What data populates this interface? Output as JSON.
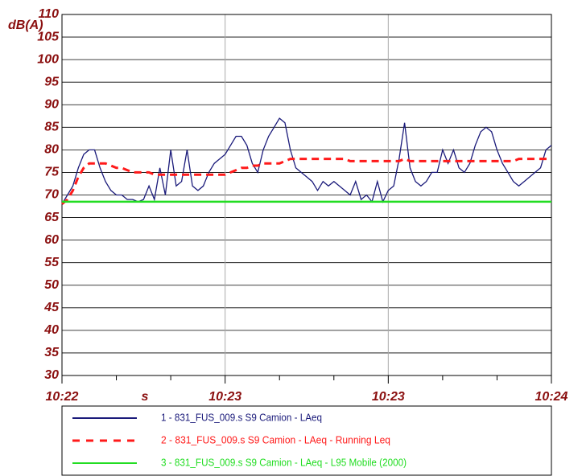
{
  "chart_data": {
    "type": "line",
    "y_label": "dB(A)",
    "x_label": "s",
    "xlim": [
      0,
      90
    ],
    "xticks": [
      {
        "value": 0,
        "label": "10:22"
      },
      {
        "value": 30,
        "label": "10:23"
      },
      {
        "value": 60,
        "label": "10:23"
      },
      {
        "value": 90,
        "label": "10:24"
      }
    ],
    "ylim": [
      30,
      110
    ],
    "yticks": [
      30,
      35,
      40,
      45,
      50,
      55,
      60,
      65,
      70,
      75,
      80,
      85,
      90,
      95,
      100,
      105,
      110
    ],
    "grid": true,
    "series": [
      {
        "name": "1 - 831_FUS_009.s S9 Camion - LAeq",
        "color": "#1a1a7a",
        "dash": false,
        "values": [
          68,
          70,
          72,
          76,
          79,
          80,
          80,
          76,
          73,
          71,
          70,
          70,
          69,
          69,
          68.5,
          69,
          72,
          69,
          76,
          70,
          80,
          72,
          73,
          80,
          72,
          71,
          72,
          75,
          77,
          78,
          79,
          81,
          83,
          83,
          81,
          77,
          75,
          80,
          83,
          85,
          87,
          86,
          80,
          76,
          75,
          74,
          73,
          71,
          73,
          72,
          73,
          72,
          71,
          70,
          73,
          69,
          70,
          68.5,
          73,
          68.5,
          71,
          72,
          78,
          86,
          76,
          73,
          72,
          73,
          75,
          75,
          80,
          77,
          80,
          76,
          75,
          77,
          81,
          84,
          85,
          84,
          80,
          77,
          75,
          73,
          72,
          73,
          74,
          75,
          76,
          80,
          81
        ]
      },
      {
        "name": "2 - 831_FUS_009.s S9 Camion - LAeq - Running Leq",
        "color": "#ff1a1a",
        "dash": true,
        "values": [
          68,
          69,
          71,
          74,
          76,
          77,
          77,
          77,
          77,
          76.5,
          76,
          76,
          75.5,
          75,
          75,
          75,
          75,
          74.5,
          74.5,
          74.5,
          74.5,
          74.5,
          74.5,
          74.5,
          74.5,
          74.5,
          74.5,
          74.5,
          74.5,
          74.5,
          74.5,
          75,
          75.5,
          76,
          76,
          76.5,
          76.5,
          77,
          77,
          77,
          77,
          77.5,
          78,
          78,
          78,
          78,
          78,
          78,
          78,
          78,
          78,
          78,
          78,
          77.5,
          77.5,
          77.5,
          77.5,
          77.5,
          77.5,
          77.5,
          77.5,
          77.5,
          77.5,
          78,
          77.5,
          77.5,
          77.5,
          77.5,
          77.5,
          77.5,
          77.5,
          77.5,
          77.5,
          77.5,
          77.5,
          77.5,
          77.5,
          77.5,
          77.5,
          77.5,
          77.5,
          77.5,
          77.5,
          77.5,
          78,
          78,
          78,
          78,
          78,
          78,
          78
        ]
      },
      {
        "name": "3 - 831_FUS_009.s S9 Camion - LAeq - L95 Mobile (2000)",
        "color": "#22dd22",
        "dash": false,
        "values": [
          68.5,
          68.5,
          68.5,
          68.5,
          68.5,
          68.5,
          68.5,
          68.5,
          68.5,
          68.5,
          68.5,
          68.5,
          68.5,
          68.5,
          68.5,
          68.5,
          68.5,
          68.5,
          68.5,
          68.5,
          68.5,
          68.5,
          68.5,
          68.5,
          68.5,
          68.5,
          68.5,
          68.5,
          68.5,
          68.5,
          68.5,
          68.5,
          68.5,
          68.5,
          68.5,
          68.5,
          68.5,
          68.5,
          68.5,
          68.5,
          68.5,
          68.5,
          68.5,
          68.5,
          68.5,
          68.5,
          68.5,
          68.5,
          68.5,
          68.5,
          68.5,
          68.5,
          68.5,
          68.5,
          68.5,
          68.5,
          68.5,
          68.5,
          68.5,
          68.5,
          68.5,
          68.5,
          68.5,
          68.5,
          68.5,
          68.5,
          68.5,
          68.5,
          68.5,
          68.5,
          68.5,
          68.5,
          68.5,
          68.5,
          68.5,
          68.5,
          68.5,
          68.5,
          68.5,
          68.5,
          68.5,
          68.5,
          68.5,
          68.5,
          68.5,
          68.5,
          68.5,
          68.5,
          68.5,
          68.5,
          68.5
        ]
      }
    ]
  }
}
